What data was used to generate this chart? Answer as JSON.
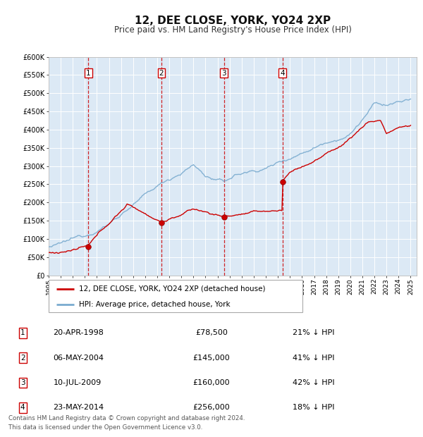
{
  "title": "12, DEE CLOSE, YORK, YO24 2XP",
  "subtitle": "Price paid vs. HM Land Registry's House Price Index (HPI)",
  "ylim": [
    0,
    600000
  ],
  "yticks": [
    0,
    50000,
    100000,
    150000,
    200000,
    250000,
    300000,
    350000,
    400000,
    450000,
    500000,
    550000,
    600000
  ],
  "ytick_labels": [
    "£0",
    "£50K",
    "£100K",
    "£150K",
    "£200K",
    "£250K",
    "£300K",
    "£350K",
    "£400K",
    "£450K",
    "£500K",
    "£550K",
    "£600K"
  ],
  "xlim_start": 1995.0,
  "xlim_end": 2025.5,
  "background_color": "#ffffff",
  "chart_bg_color": "#dce9f5",
  "grid_color": "#ffffff",
  "sale_color": "#cc0000",
  "hpi_color": "#7aabcf",
  "transactions": [
    {
      "num": 1,
      "date_label": "20-APR-1998",
      "year": 1998.3,
      "price": 78500,
      "pct": "21%"
    },
    {
      "num": 2,
      "date_label": "06-MAY-2004",
      "year": 2004.35,
      "price": 145000,
      "pct": "41%"
    },
    {
      "num": 3,
      "date_label": "10-JUL-2009",
      "year": 2009.52,
      "price": 160000,
      "pct": "42%"
    },
    {
      "num": 4,
      "date_label": "23-MAY-2014",
      "year": 2014.38,
      "price": 256000,
      "pct": "18%"
    }
  ],
  "legend_label_sale": "12, DEE CLOSE, YORK, YO24 2XP (detached house)",
  "legend_label_hpi": "HPI: Average price, detached house, York",
  "footnote": "Contains HM Land Registry data © Crown copyright and database right 2024.\nThis data is licensed under the Open Government Licence v3.0."
}
